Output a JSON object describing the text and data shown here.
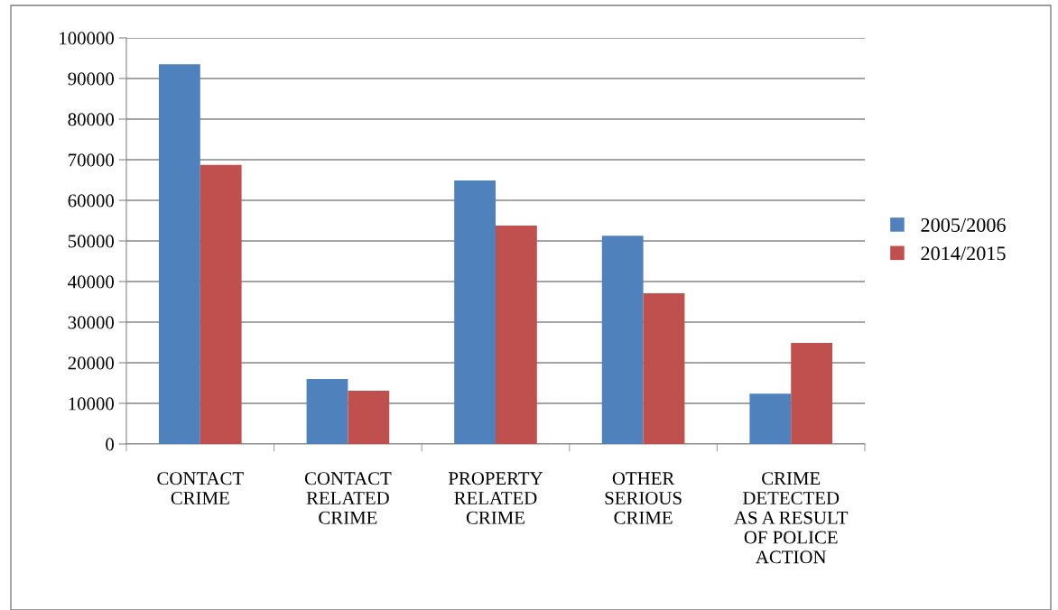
{
  "chart_data": {
    "type": "bar",
    "categories": [
      "CONTACT\nCRIME",
      "CONTACT\nRELATED\nCRIME",
      "PROPERTY\nRELATED\nCRIME",
      "OTHER\nSERIOUS\nCRIME",
      "CRIME\nDETECTED\nAS A RESULT\nOF POLICE\nACTION"
    ],
    "series": [
      {
        "name": "2005/2006",
        "color": "#4f81bd",
        "values": [
          93500,
          16000,
          64900,
          51300,
          12400
        ]
      },
      {
        "name": "2014/2015",
        "color": "#c0504d",
        "values": [
          68700,
          13100,
          53800,
          37100,
          24900
        ]
      }
    ],
    "ylim": [
      0,
      100000
    ],
    "yticks": [
      0,
      10000,
      20000,
      30000,
      40000,
      50000,
      60000,
      70000,
      80000,
      90000,
      100000
    ],
    "grid": "y",
    "legend": "right"
  }
}
